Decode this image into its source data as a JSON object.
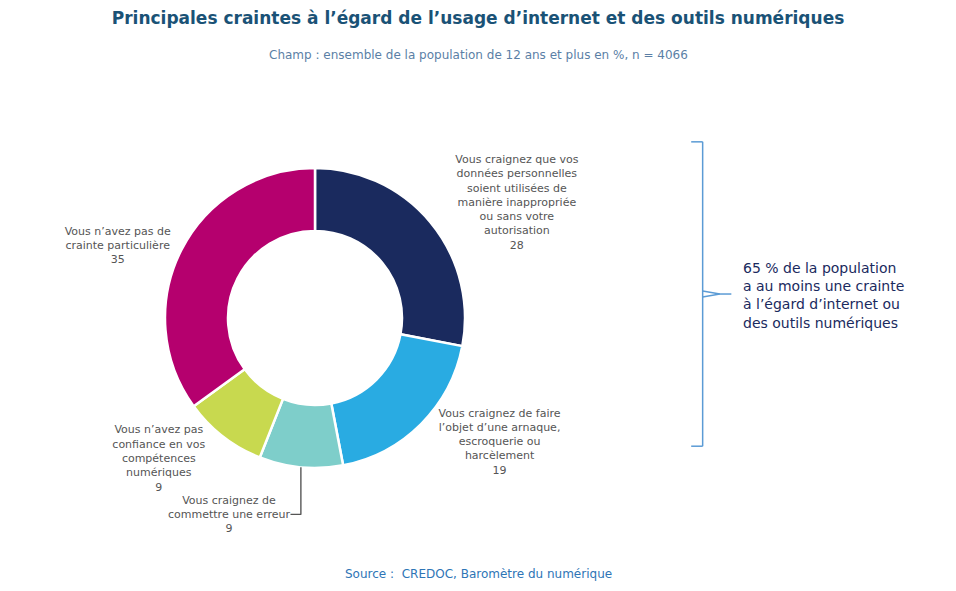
{
  "chart_data": {
    "type": "donut",
    "title": "Principales craintes à l’égard de l’usage d’internet et des outils numériques",
    "subtitle": "Champ : ensemble de la population de 12 ans et plus en %, n = 4066",
    "source": "Source :  CREDOC, Baromètre du numérique",
    "annotation": "65 % de la population\na au moins une crainte\nà l’égard d’internet ou\ndes outils numériques",
    "categories": [
      "Vous craignez que vos\ndonnées personnelles\nsoient utilisées de\nmanière inappropriée\nou sans votre\nautorisation",
      "Vous craignez de faire\nl’objet d’une arnaque,\nescroquerie ou\nharcèlement",
      "Vous craignez de\ncommettre une erreur",
      "Vous n’avez pas\nconfiance en vos\ncompétences\nnumériques",
      "Vous n’avez pas de\ncrainte particulière"
    ],
    "values": [
      28,
      19,
      9,
      9,
      35
    ],
    "colors": [
      "#1a2a5e",
      "#29abe2",
      "#7ececa",
      "#c8d94f",
      "#b5006e"
    ],
    "data_labels": true
  }
}
